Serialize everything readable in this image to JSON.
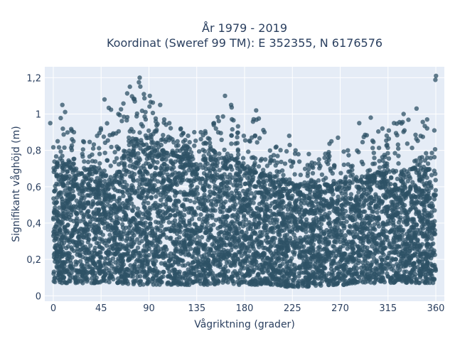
{
  "chart_data": {
    "type": "scatter",
    "title_line1": "År 1979 - 2019",
    "title_line2": "Koordinat (Sweref 99 TM): E 352355, N 6176576",
    "xlabel": "Vågriktning (grader)",
    "ylabel": "Signifikant våghöjd (m)",
    "xlim": [
      -8,
      368
    ],
    "ylim": [
      -0.03,
      1.26
    ],
    "xticks": [
      0,
      45,
      90,
      135,
      180,
      225,
      270,
      315,
      360
    ],
    "xtick_labels": [
      "0",
      "45",
      "90",
      "135",
      "180",
      "225",
      "270",
      "315",
      "360"
    ],
    "yticks": [
      0,
      0.2,
      0.4,
      0.6,
      0.8,
      1.0,
      1.2
    ],
    "ytick_labels": [
      "0",
      "0,2",
      "0,4",
      "0,6",
      "0,8",
      "1",
      "1,2"
    ],
    "grid": true,
    "marker_color": "#2e5266",
    "plot_background": "#e5ecf6",
    "envelope": {
      "x": [
        0,
        10,
        20,
        30,
        40,
        50,
        60,
        70,
        80,
        90,
        100,
        110,
        120,
        130,
        140,
        150,
        160,
        170,
        180,
        190,
        200,
        210,
        220,
        230,
        240,
        250,
        260,
        270,
        280,
        290,
        300,
        310,
        320,
        330,
        340,
        350,
        360
      ],
      "dense_top": [
        0.7,
        0.72,
        0.7,
        0.69,
        0.68,
        0.66,
        0.68,
        0.8,
        0.84,
        0.82,
        0.8,
        0.78,
        0.76,
        0.75,
        0.75,
        0.74,
        0.76,
        0.75,
        0.7,
        0.68,
        0.66,
        0.64,
        0.62,
        0.6,
        0.6,
        0.6,
        0.61,
        0.62,
        0.62,
        0.64,
        0.66,
        0.67,
        0.68,
        0.69,
        0.7,
        0.7,
        0.68
      ],
      "outlier_top": [
        0.95,
        1.05,
        0.9,
        0.85,
        0.88,
        1.08,
        1.0,
        1.15,
        1.2,
        1.1,
        1.05,
        0.95,
        0.92,
        0.9,
        0.9,
        0.95,
        1.1,
        1.05,
        0.88,
        1.02,
        0.9,
        0.82,
        0.88,
        0.8,
        0.78,
        0.75,
        0.85,
        0.87,
        0.8,
        0.95,
        0.98,
        0.92,
        0.95,
        1.0,
        1.03,
        0.97,
        1.21
      ],
      "bottom": [
        0.07,
        0.07,
        0.07,
        0.07,
        0.07,
        0.07,
        0.07,
        0.06,
        0.06,
        0.06,
        0.06,
        0.06,
        0.06,
        0.06,
        0.06,
        0.06,
        0.06,
        0.06,
        0.06,
        0.06,
        0.06,
        0.06,
        0.05,
        0.05,
        0.05,
        0.05,
        0.06,
        0.06,
        0.06,
        0.07,
        0.07,
        0.07,
        0.07,
        0.07,
        0.07,
        0.07,
        0.07
      ]
    }
  }
}
